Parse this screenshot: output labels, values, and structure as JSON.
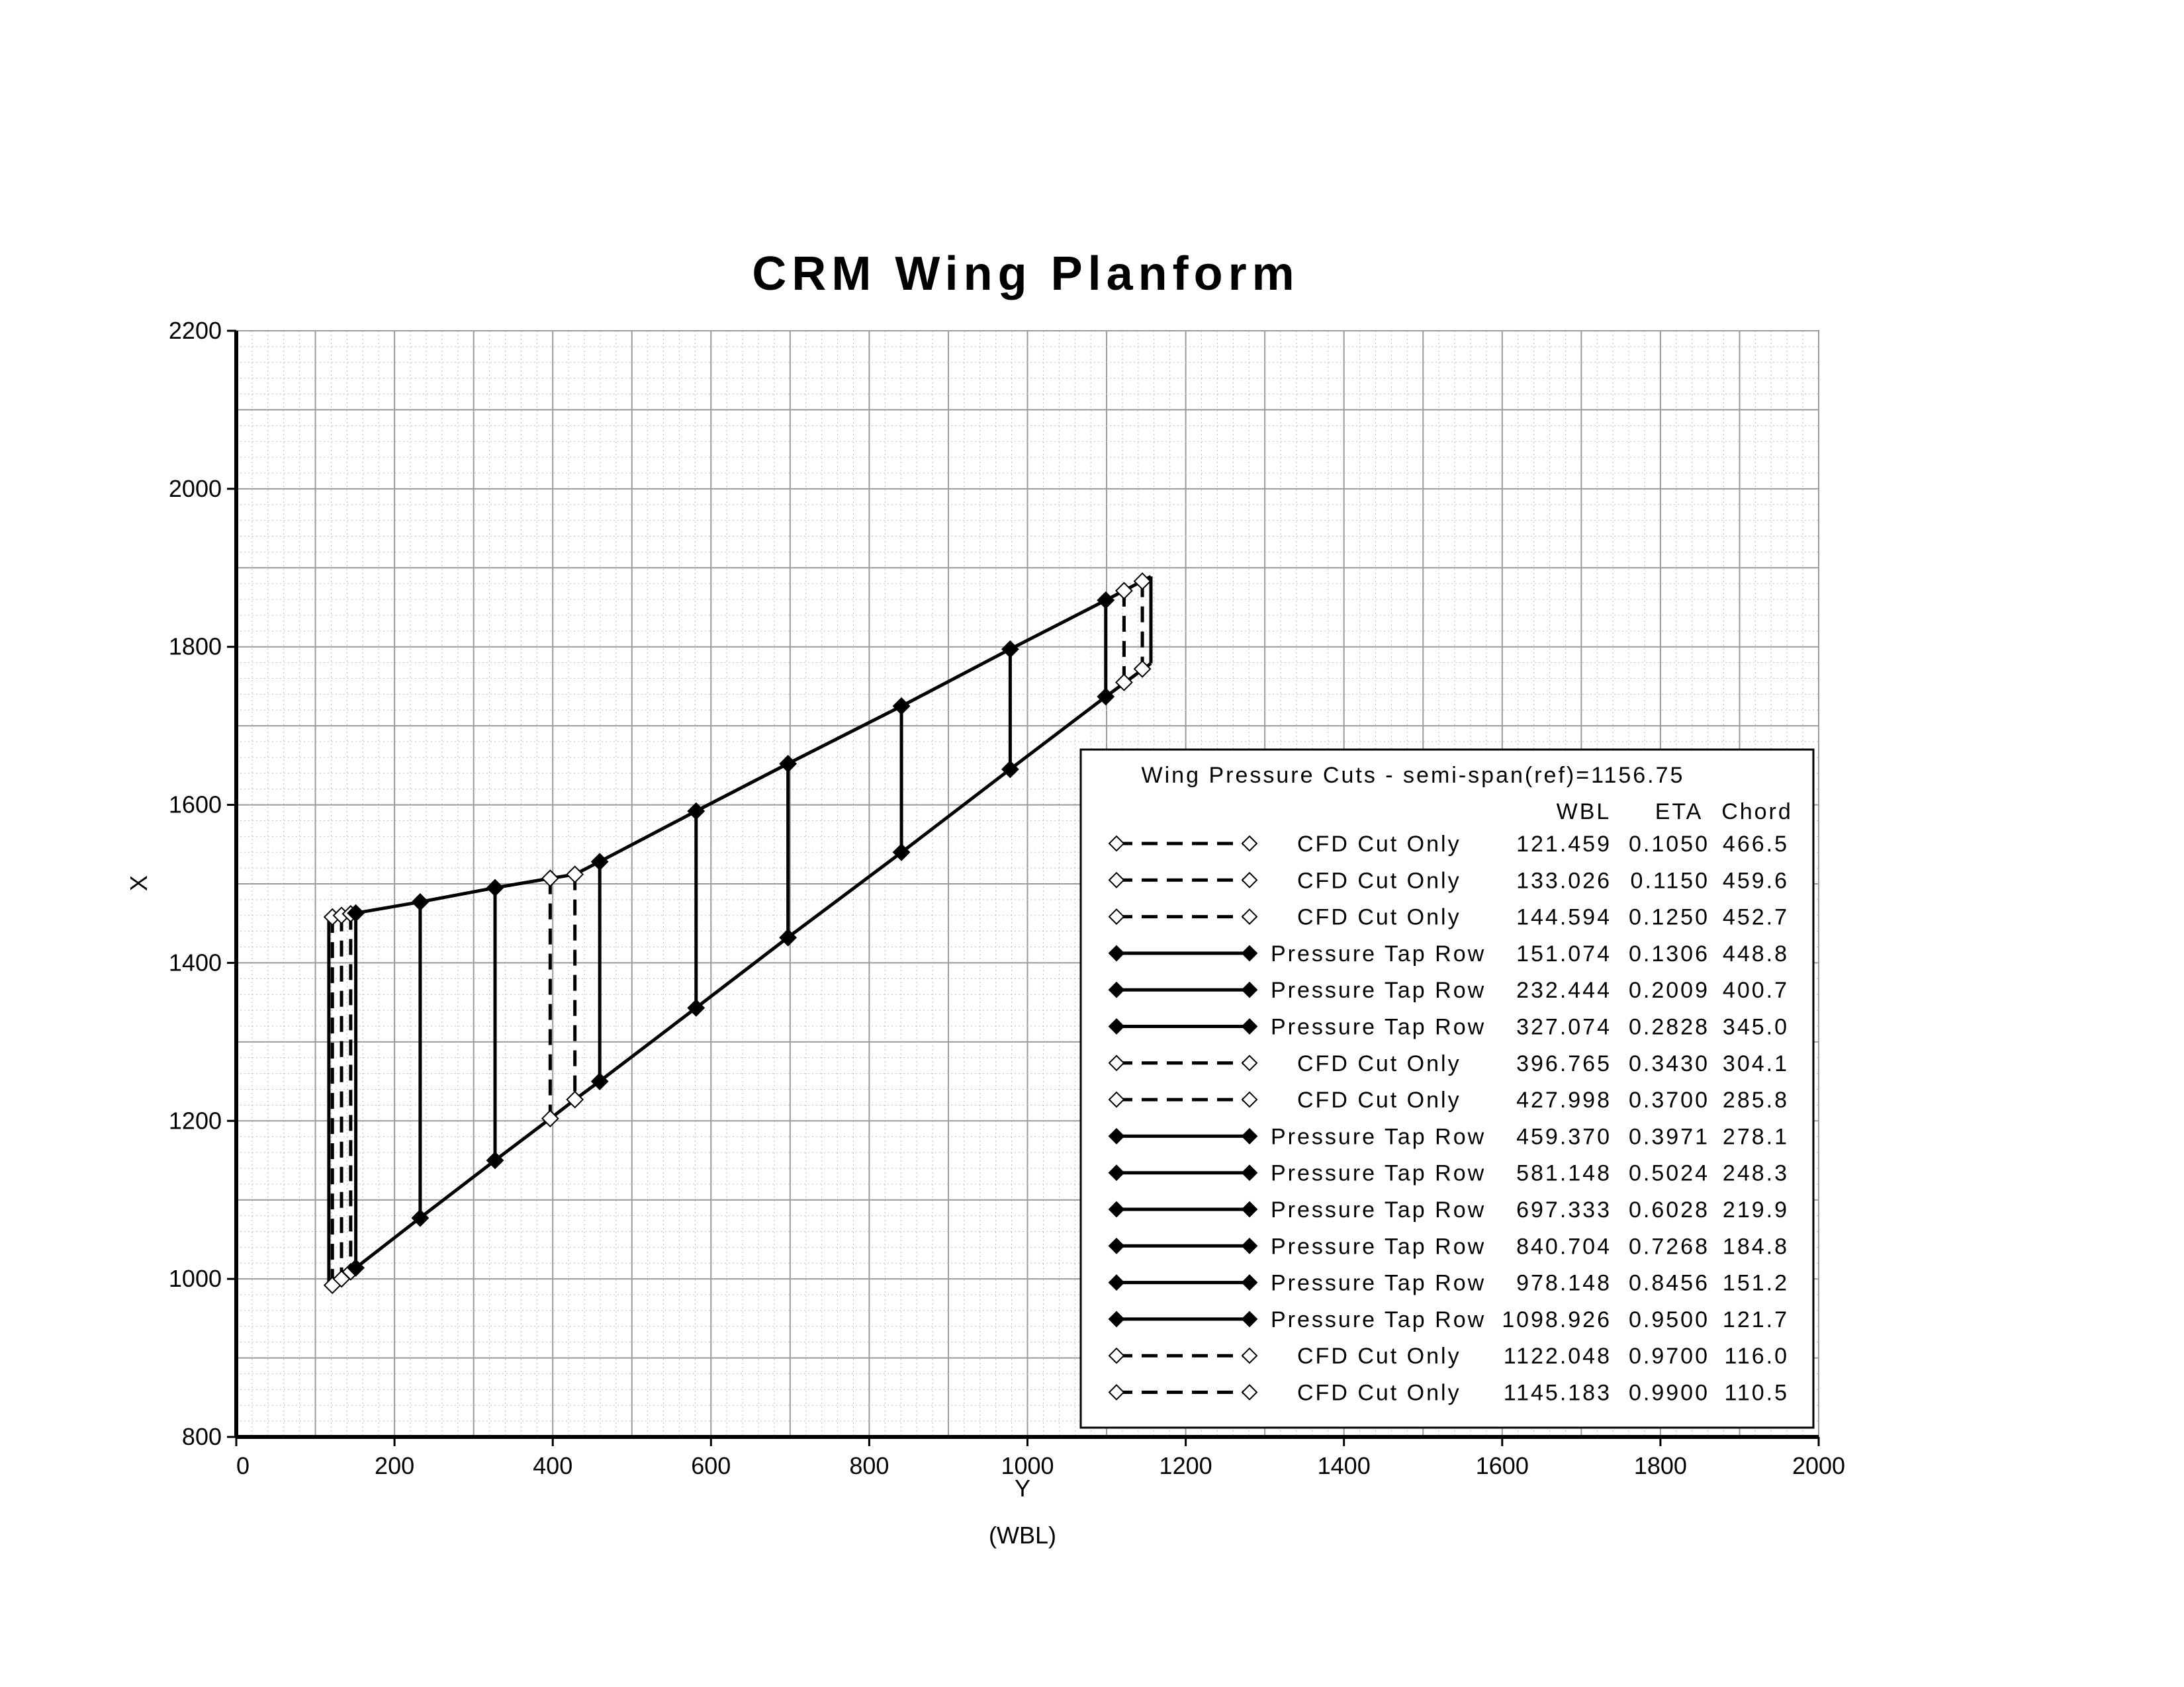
{
  "chart_data": {
    "type": "line",
    "title": "CRM Wing Planform",
    "xlabel": "Y",
    "xlabel_sub": "(WBL)",
    "ylabel": "X",
    "xlim": [
      0,
      2000
    ],
    "ylim": [
      800,
      2200
    ],
    "xticks": [
      0,
      200,
      400,
      600,
      800,
      1000,
      1200,
      1400,
      1600,
      1800,
      2000
    ],
    "yticks": [
      800,
      1000,
      1200,
      1400,
      1600,
      1800,
      2000,
      2200
    ],
    "grid": true,
    "legend_position": "lower-right",
    "legend": {
      "title": "Wing Pressure Cuts - semi-span(ref)=1156.75",
      "columns": [
        "WBL",
        "ETA",
        "Chord"
      ]
    },
    "outline": {
      "leading_edge": [
        [
          117,
          1457
        ],
        [
          151,
          1463
        ],
        [
          232,
          1477
        ],
        [
          327,
          1495
        ],
        [
          397,
          1507
        ],
        [
          428,
          1512
        ],
        [
          459,
          1528
        ],
        [
          581,
          1592
        ],
        [
          697,
          1652
        ],
        [
          841,
          1725
        ],
        [
          978,
          1797
        ],
        [
          1099,
          1859
        ],
        [
          1156,
          1889
        ]
      ],
      "trailing_edge": [
        [
          117,
          993
        ],
        [
          151,
          1014
        ],
        [
          232,
          1077
        ],
        [
          327,
          1150
        ],
        [
          397,
          1203
        ],
        [
          428,
          1227
        ],
        [
          459,
          1250
        ],
        [
          581,
          1343
        ],
        [
          697,
          1432
        ],
        [
          841,
          1540
        ],
        [
          978,
          1645
        ],
        [
          1099,
          1737
        ],
        [
          1156,
          1779
        ]
      ]
    },
    "series": [
      {
        "name": "CFD Cut Only",
        "wbl": "121.459",
        "eta": "0.1050",
        "chord": "466.5",
        "style": "cfd",
        "x": 121.459,
        "le": 1458,
        "te": 992
      },
      {
        "name": "CFD Cut Only",
        "wbl": "133.026",
        "eta": "0.1150",
        "chord": "459.6",
        "style": "cfd",
        "x": 133.026,
        "le": 1460,
        "te": 1000
      },
      {
        "name": "CFD Cut Only",
        "wbl": "144.594",
        "eta": "0.1250",
        "chord": "452.7",
        "style": "cfd",
        "x": 144.594,
        "le": 1462,
        "te": 1009
      },
      {
        "name": "Pressure Tap Row",
        "wbl": "151.074",
        "eta": "0.1306",
        "chord": "448.8",
        "style": "tap",
        "x": 151.074,
        "le": 1463,
        "te": 1014
      },
      {
        "name": "Pressure Tap Row",
        "wbl": "232.444",
        "eta": "0.2009",
        "chord": "400.7",
        "style": "tap",
        "x": 232.444,
        "le": 1477,
        "te": 1077
      },
      {
        "name": "Pressure Tap Row",
        "wbl": "327.074",
        "eta": "0.2828",
        "chord": "345.0",
        "style": "tap",
        "x": 327.074,
        "le": 1495,
        "te": 1150
      },
      {
        "name": "CFD Cut Only",
        "wbl": "396.765",
        "eta": "0.3430",
        "chord": "304.1",
        "style": "cfd",
        "x": 396.765,
        "le": 1507,
        "te": 1203
      },
      {
        "name": "CFD Cut Only",
        "wbl": "427.998",
        "eta": "0.3700",
        "chord": "285.8",
        "style": "cfd",
        "x": 427.998,
        "le": 1512,
        "te": 1227
      },
      {
        "name": "Pressure Tap Row",
        "wbl": "459.370",
        "eta": "0.3971",
        "chord": "278.1",
        "style": "tap",
        "x": 459.37,
        "le": 1528,
        "te": 1250
      },
      {
        "name": "Pressure Tap Row",
        "wbl": "581.148",
        "eta": "0.5024",
        "chord": "248.3",
        "style": "tap",
        "x": 581.148,
        "le": 1592,
        "te": 1343
      },
      {
        "name": "Pressure Tap Row",
        "wbl": "697.333",
        "eta": "0.6028",
        "chord": "219.9",
        "style": "tap",
        "x": 697.333,
        "le": 1652,
        "te": 1432
      },
      {
        "name": "Pressure Tap Row",
        "wbl": "840.704",
        "eta": "0.7268",
        "chord": "184.8",
        "style": "tap",
        "x": 840.704,
        "le": 1725,
        "te": 1540
      },
      {
        "name": "Pressure Tap Row",
        "wbl": "978.148",
        "eta": "0.8456",
        "chord": "151.2",
        "style": "tap",
        "x": 978.148,
        "le": 1797,
        "te": 1645
      },
      {
        "name": "Pressure Tap Row",
        "wbl": "1098.926",
        "eta": "0.9500",
        "chord": "121.7",
        "style": "tap",
        "x": 1098.926,
        "le": 1859,
        "te": 1737
      },
      {
        "name": "CFD Cut Only",
        "wbl": "1122.048",
        "eta": "0.9700",
        "chord": "116.0",
        "style": "cfd",
        "x": 1122.048,
        "le": 1871,
        "te": 1755
      },
      {
        "name": "CFD Cut Only",
        "wbl": "1145.183",
        "eta": "0.9900",
        "chord": "110.5",
        "style": "cfd",
        "x": 1145.183,
        "le": 1883,
        "te": 1772
      }
    ]
  }
}
